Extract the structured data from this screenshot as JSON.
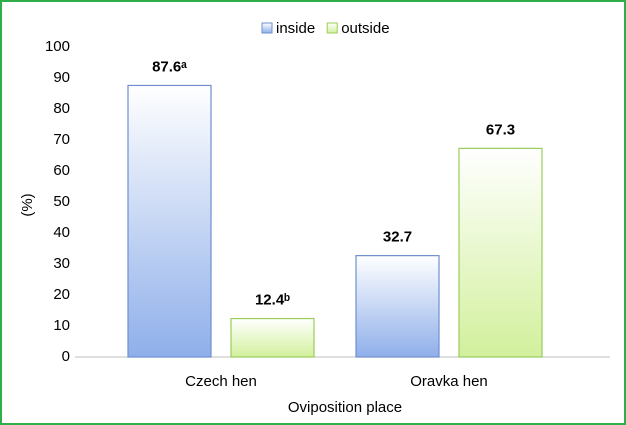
{
  "chart_data": {
    "type": "bar",
    "categories": [
      "Czech hen",
      "Oravka hen"
    ],
    "series": [
      {
        "name": "inside",
        "color": "#8fafea",
        "border": "#6f8fd0",
        "values": [
          87.6,
          32.7
        ],
        "value_labels": [
          "87.6ᵃ",
          "32.7"
        ]
      },
      {
        "name": "outside",
        "color": "#d2f09c",
        "border": "#9acd5a",
        "values": [
          12.4,
          67.3
        ],
        "value_labels": [
          "12.4ᵇ",
          "67.3"
        ]
      }
    ],
    "x_label": "Oviposition place",
    "y_label": "(%)",
    "ylim": [
      0,
      100
    ],
    "yticks": [
      0,
      10,
      20,
      30,
      40,
      50,
      60,
      70,
      80,
      90,
      100
    ],
    "grid": false,
    "legend": "top"
  }
}
